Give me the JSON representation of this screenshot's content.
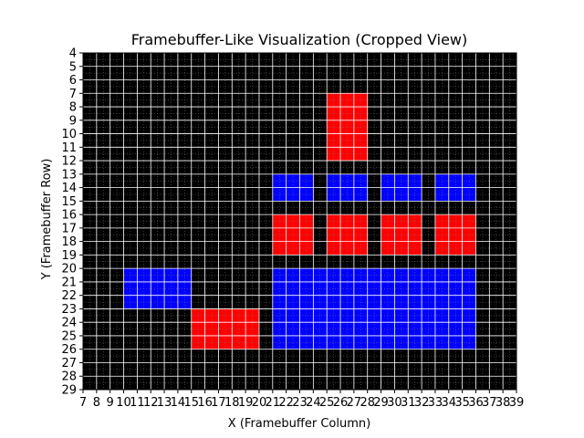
{
  "chart_data": {
    "type": "heatmap",
    "title": "Framebuffer-Like Visualization (Cropped View)",
    "xlabel": "X (Framebuffer Column)",
    "ylabel": "Y (Framebuffer Row)",
    "x_range": [
      7,
      39
    ],
    "y_range": [
      4,
      29
    ],
    "y_inverted": true,
    "grid": true,
    "background_color": "#000000",
    "grid_color": "#ffffff",
    "x_ticks": [
      7,
      8,
      9,
      10,
      11,
      12,
      13,
      14,
      15,
      16,
      17,
      18,
      19,
      20,
      21,
      22,
      23,
      24,
      25,
      26,
      27,
      28,
      29,
      30,
      31,
      32,
      33,
      34,
      35,
      36,
      37,
      38,
      39
    ],
    "y_ticks": [
      4,
      5,
      6,
      7,
      8,
      9,
      10,
      11,
      12,
      13,
      14,
      15,
      16,
      17,
      18,
      19,
      20,
      21,
      22,
      23,
      24,
      25,
      26,
      27,
      28,
      29
    ],
    "regions": [
      {
        "color": "#ff0000",
        "x": [
          25,
          28
        ],
        "y": [
          7,
          12
        ]
      },
      {
        "color": "#0000ff",
        "x": [
          21,
          24
        ],
        "y": [
          13,
          15
        ]
      },
      {
        "color": "#0000ff",
        "x": [
          25,
          28
        ],
        "y": [
          13,
          15
        ]
      },
      {
        "color": "#0000ff",
        "x": [
          29,
          32
        ],
        "y": [
          13,
          15
        ]
      },
      {
        "color": "#0000ff",
        "x": [
          33,
          36
        ],
        "y": [
          13,
          15
        ]
      },
      {
        "color": "#ff0000",
        "x": [
          21,
          24
        ],
        "y": [
          16,
          19
        ]
      },
      {
        "color": "#ff0000",
        "x": [
          25,
          28
        ],
        "y": [
          16,
          19
        ]
      },
      {
        "color": "#ff0000",
        "x": [
          29,
          32
        ],
        "y": [
          16,
          19
        ]
      },
      {
        "color": "#ff0000",
        "x": [
          33,
          36
        ],
        "y": [
          16,
          19
        ]
      },
      {
        "color": "#0000ff",
        "x": [
          10,
          15
        ],
        "y": [
          20,
          23
        ]
      },
      {
        "color": "#0000ff",
        "x": [
          21,
          36
        ],
        "y": [
          20,
          26
        ]
      },
      {
        "color": "#ff0000",
        "x": [
          15,
          20
        ],
        "y": [
          23,
          26
        ]
      }
    ]
  }
}
